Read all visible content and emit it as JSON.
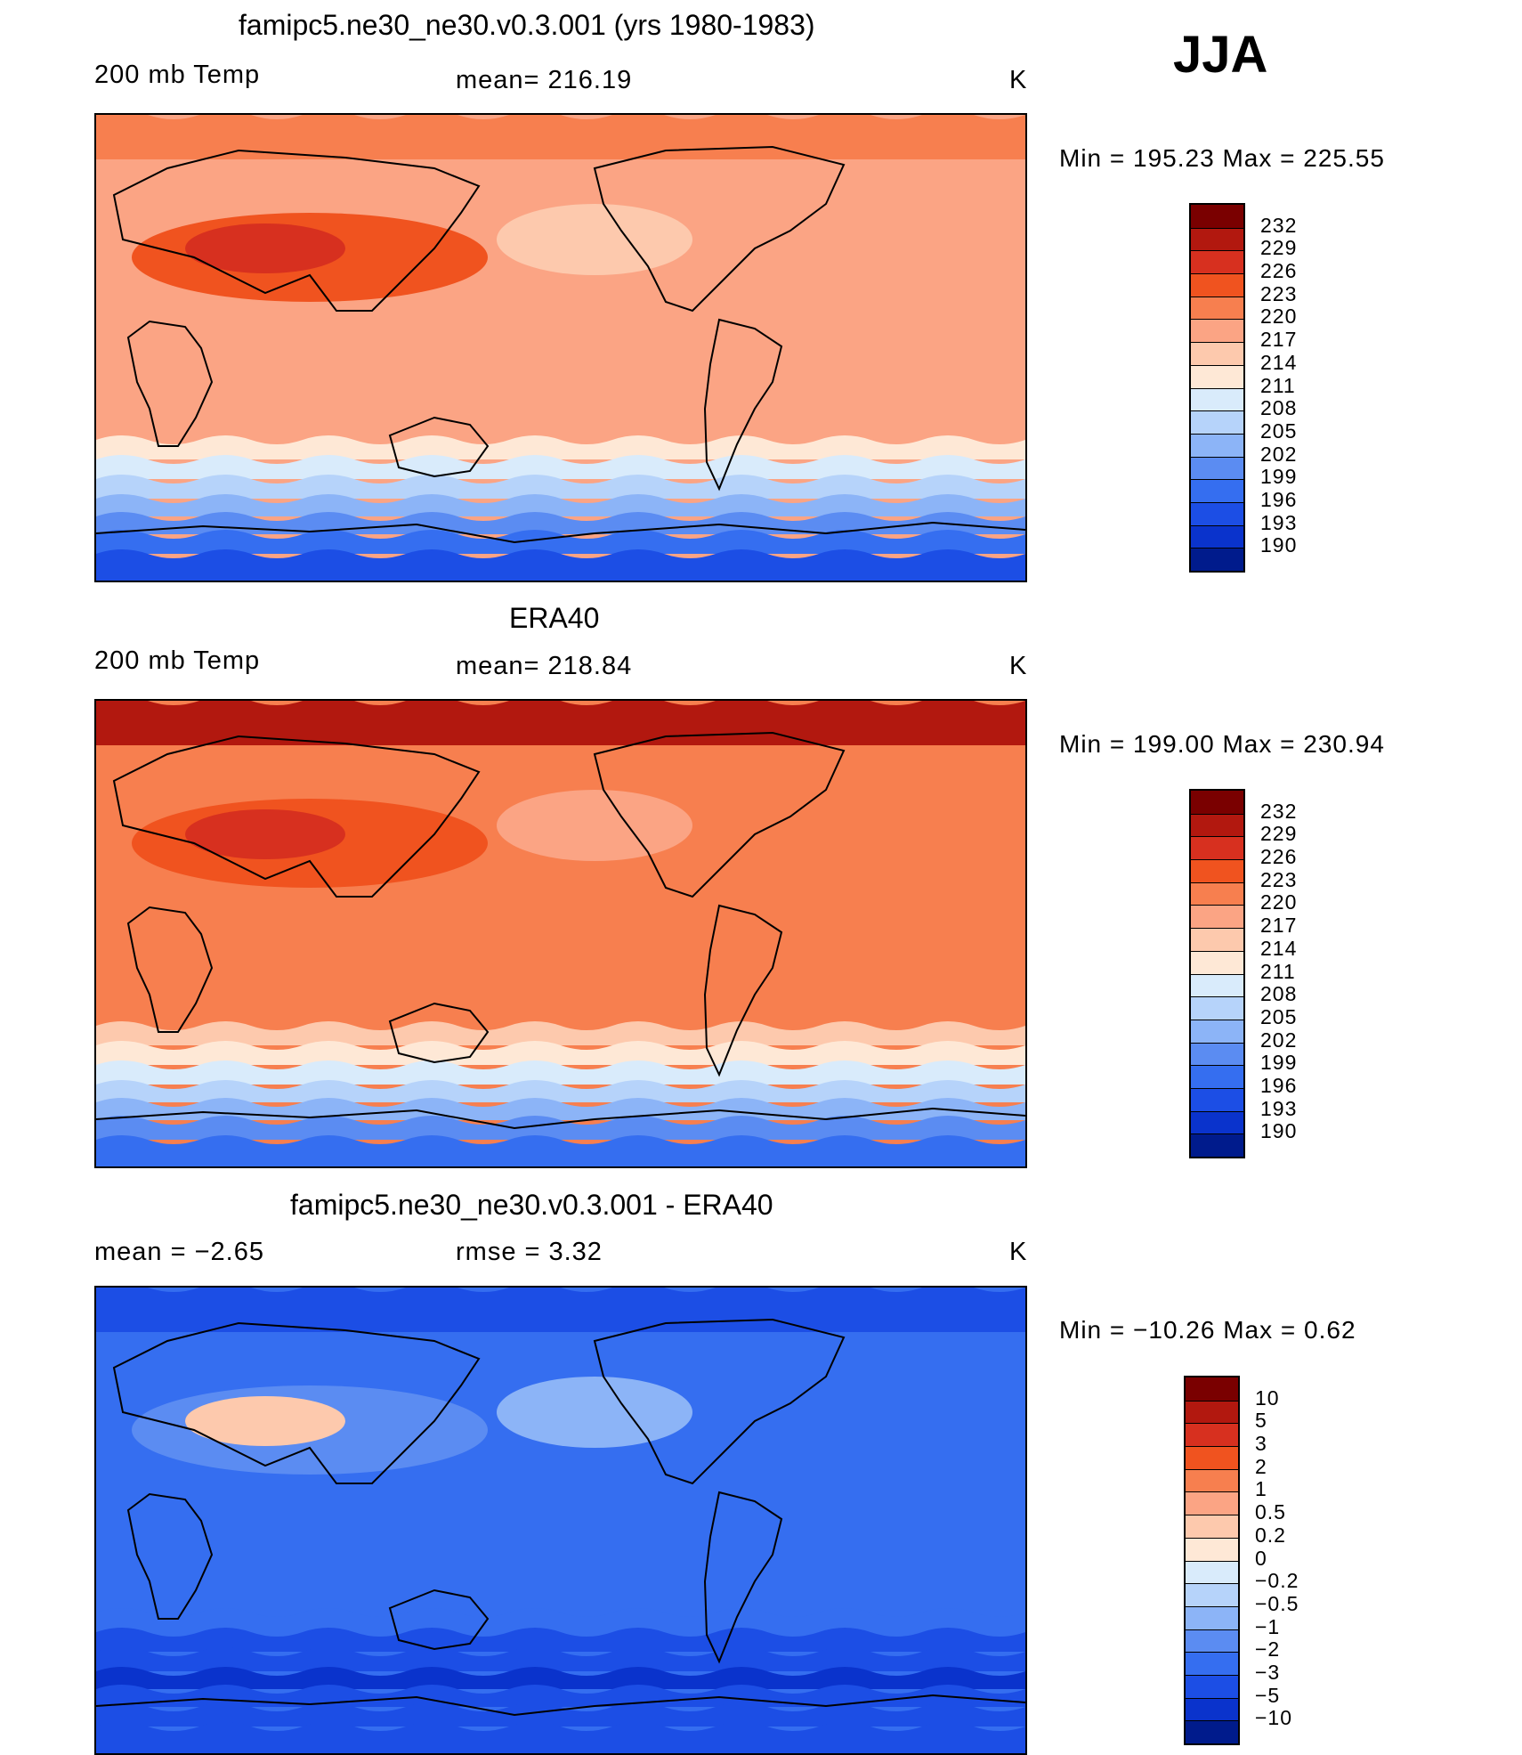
{
  "season": "JJA",
  "panels": [
    {
      "title": "famipc5.ne30_ne30.v0.3.001 (yrs 1980-1983)",
      "left_label": "200 mb Temp",
      "center_label": "mean= 216.19",
      "units": "K",
      "minmax": "Min  =  195.23  Max  =  225.55",
      "colorbar": {
        "labels": [
          "232",
          "229",
          "226",
          "223",
          "220",
          "217",
          "214",
          "211",
          "208",
          "205",
          "202",
          "199",
          "196",
          "193",
          "190"
        ],
        "colors": [
          "#7a0000",
          "#b2180f",
          "#d7301f",
          "#f0531f",
          "#f77f4f",
          "#fba484",
          "#fdc9ad",
          "#fee8d6",
          "#d9ebfb",
          "#b6d3fa",
          "#8cb4f7",
          "#5b8cf2",
          "#356ef0",
          "#1c4ee5",
          "#0a33cc",
          "#001b8c"
        ]
      },
      "field_colors": {
        "arctic": "#f77f4f",
        "tropics": "#fba484",
        "warm": "#f0531f",
        "hot": "#d7301f",
        "cool": "#fdc9ad",
        "s1": "#fee8d6",
        "s2": "#d9ebfb",
        "s3": "#b6d3fa",
        "s4": "#8cb4f7",
        "s5": "#5b8cf2",
        "s6": "#356ef0",
        "s7": "#1c4ee5"
      }
    },
    {
      "title": "ERA40",
      "left_label": "200 mb Temp",
      "center_label": "mean= 218.84",
      "units": "K",
      "minmax": "Min  =  199.00  Max  =  230.94",
      "colorbar": {
        "labels": [
          "232",
          "229",
          "226",
          "223",
          "220",
          "217",
          "214",
          "211",
          "208",
          "205",
          "202",
          "199",
          "196",
          "193",
          "190"
        ],
        "colors": [
          "#7a0000",
          "#b2180f",
          "#d7301f",
          "#f0531f",
          "#f77f4f",
          "#fba484",
          "#fdc9ad",
          "#fee8d6",
          "#d9ebfb",
          "#b6d3fa",
          "#8cb4f7",
          "#5b8cf2",
          "#356ef0",
          "#1c4ee5",
          "#0a33cc",
          "#001b8c"
        ]
      },
      "field_colors": {
        "arctic": "#b2180f",
        "tropics": "#f77f4f",
        "warm": "#f0531f",
        "hot": "#d7301f",
        "cool": "#fba484",
        "s1": "#fdc9ad",
        "s2": "#fee8d6",
        "s3": "#d9ebfb",
        "s4": "#b6d3fa",
        "s5": "#8cb4f7",
        "s6": "#5b8cf2",
        "s7": "#356ef0"
      }
    },
    {
      "title": "famipc5.ne30_ne30.v0.3.001 - ERA40",
      "left_label": "mean  =    −2.65",
      "center_label": "rmse  =     3.32",
      "units": "K",
      "minmax": "Min  = −10.26  Max  =     0.62",
      "colorbar": {
        "labels": [
          "10",
          "5",
          "3",
          "2",
          "1",
          "0.5",
          "0.2",
          "0",
          "−0.2",
          "−0.5",
          "−1",
          "−2",
          "−3",
          "−5",
          "−10"
        ],
        "colors": [
          "#7a0000",
          "#b2180f",
          "#d7301f",
          "#f0531f",
          "#f77f4f",
          "#fba484",
          "#fdc9ad",
          "#fee8d6",
          "#d9ebfb",
          "#b6d3fa",
          "#8cb4f7",
          "#5b8cf2",
          "#356ef0",
          "#1c4ee5",
          "#0a33cc",
          "#001b8c"
        ]
      },
      "field_colors": {
        "arctic": "#1c4ee5",
        "tropics": "#356ef0",
        "warm": "#5b8cf2",
        "hot": "#fdc9ad",
        "cool": "#8cb4f7",
        "s1": "#356ef0",
        "s2": "#1c4ee5",
        "s3": "#1c4ee5",
        "s4": "#0a33cc",
        "s5": "#1c4ee5",
        "s6": "#1c4ee5",
        "s7": "#1c4ee5"
      }
    }
  ]
}
